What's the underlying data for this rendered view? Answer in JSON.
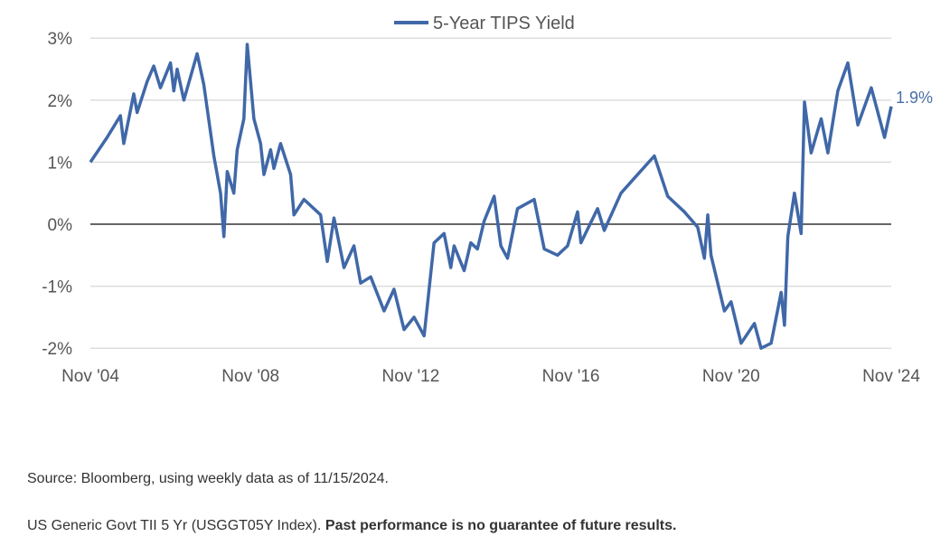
{
  "chart_data": {
    "type": "line",
    "title": "",
    "xlabel": "",
    "ylabel": "",
    "ylim": [
      -2,
      3
    ],
    "y_ticks": [
      {
        "value": 3,
        "label": "3%"
      },
      {
        "value": 2,
        "label": "2%"
      },
      {
        "value": 1,
        "label": "1%"
      },
      {
        "value": 0,
        "label": "0%"
      },
      {
        "value": -1,
        "label": "-1%"
      },
      {
        "value": -2,
        "label": "-2%"
      }
    ],
    "xlim": [
      "2004-11",
      "2024-11"
    ],
    "x_ticks": [
      {
        "value": "2004-11",
        "label": "Nov '04"
      },
      {
        "value": "2008-11",
        "label": "Nov '08"
      },
      {
        "value": "2012-11",
        "label": "Nov '12"
      },
      {
        "value": "2016-11",
        "label": "Nov '16"
      },
      {
        "value": "2020-11",
        "label": "Nov '20"
      },
      {
        "value": "2024-11",
        "label": "Nov '24"
      }
    ],
    "grid": true,
    "legend_position": "top-center",
    "series": [
      {
        "name": "5-Year TIPS Yield",
        "color": "#4068a8",
        "end_label": "1.9%",
        "x": [
          "2004-11",
          "2005-04",
          "2005-08",
          "2005-09",
          "2005-12",
          "2006-01",
          "2006-04",
          "2006-06",
          "2006-08",
          "2006-11",
          "2006-12",
          "2007-01",
          "2007-03",
          "2007-07",
          "2007-09",
          "2007-12",
          "2008-02",
          "2008-03",
          "2008-04",
          "2008-06",
          "2008-07",
          "2008-09",
          "2008-10",
          "2008-12",
          "2009-02",
          "2009-03",
          "2009-05",
          "2009-06",
          "2009-08",
          "2009-11",
          "2009-12",
          "2010-03",
          "2010-08",
          "2010-10",
          "2010-12",
          "2011-03",
          "2011-06",
          "2011-08",
          "2011-11",
          "2012-03",
          "2012-06",
          "2012-09",
          "2012-12",
          "2013-03",
          "2013-06",
          "2013-09",
          "2013-11",
          "2013-12",
          "2014-03",
          "2014-05",
          "2014-07",
          "2014-09",
          "2014-12",
          "2015-02",
          "2015-04",
          "2015-07",
          "2015-12",
          "2016-03",
          "2016-07",
          "2016-10",
          "2017-01",
          "2017-02",
          "2017-07",
          "2017-09",
          "2018-02",
          "2018-07",
          "2018-12",
          "2019-04",
          "2019-09",
          "2020-01",
          "2020-03",
          "2020-04",
          "2020-05",
          "2020-09",
          "2020-11",
          "2021-02",
          "2021-06",
          "2021-08",
          "2021-11",
          "2022-02",
          "2022-03",
          "2022-04",
          "2022-06",
          "2022-08",
          "2022-09",
          "2022-11",
          "2023-02",
          "2023-04",
          "2023-07",
          "2023-10",
          "2024-01",
          "2024-03",
          "2024-05",
          "2024-09",
          "2024-11"
        ],
        "values": [
          1.0,
          1.4,
          1.75,
          1.3,
          2.1,
          1.8,
          2.3,
          2.55,
          2.2,
          2.6,
          2.15,
          2.5,
          2.0,
          2.75,
          2.25,
          1.1,
          0.5,
          -0.2,
          0.85,
          0.5,
          1.2,
          1.7,
          2.9,
          1.7,
          1.3,
          0.8,
          1.2,
          0.9,
          1.3,
          0.8,
          0.15,
          0.4,
          0.15,
          -0.6,
          0.1,
          -0.7,
          -0.35,
          -0.95,
          -0.85,
          -1.4,
          -1.05,
          -1.7,
          -1.5,
          -1.8,
          -0.3,
          -0.15,
          -0.7,
          -0.35,
          -0.75,
          -0.3,
          -0.4,
          0.05,
          0.45,
          -0.35,
          -0.55,
          0.25,
          0.4,
          -0.4,
          -0.5,
          -0.35,
          0.2,
          -0.3,
          0.25,
          -0.1,
          0.5,
          0.8,
          1.1,
          0.45,
          0.2,
          -0.05,
          -0.55,
          0.15,
          -0.5,
          -1.4,
          -1.25,
          -1.92,
          -1.6,
          -2.0,
          -1.92,
          -1.1,
          -1.63,
          -0.2,
          0.5,
          -0.15,
          1.97,
          1.15,
          1.7,
          1.15,
          2.15,
          2.6,
          1.6,
          1.9,
          2.2,
          1.4,
          1.9
        ]
      }
    ]
  },
  "notes": {
    "source": "Source: Bloomberg, using weekly data as of 11/15/2024.",
    "index": "US Generic Govt TII 5 Yr (USGGT05Y Index). ",
    "disclaimer": "Past performance is no guarantee of future results."
  }
}
